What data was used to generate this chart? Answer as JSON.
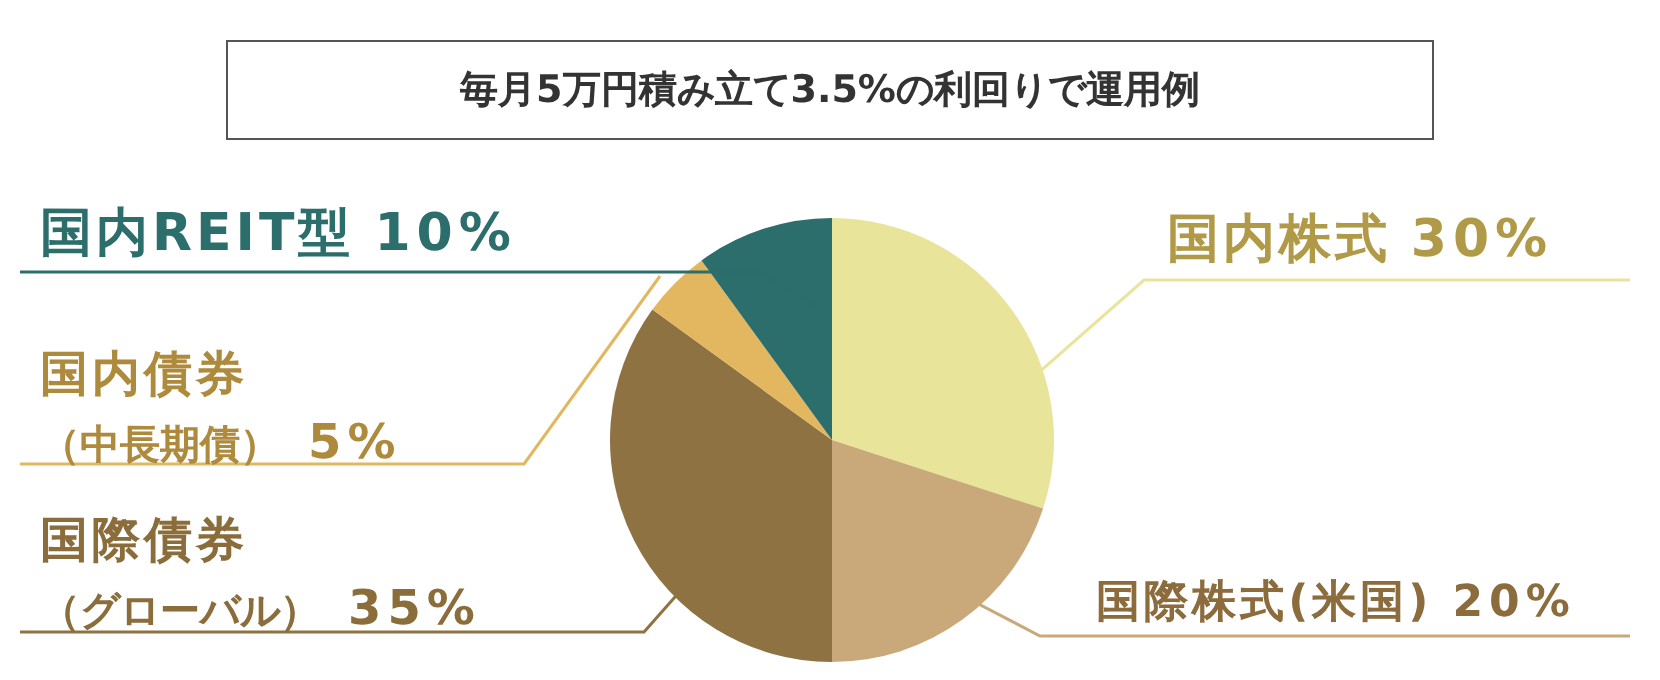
{
  "chart_data": {
    "type": "pie",
    "title": "毎月5万円積み立て3.5%の利回りで運用例",
    "categories": [
      "国内株式",
      "国際株式(米国)",
      "国際債券（グローバル）",
      "国内債券（中長期債）",
      "国内REIT型"
    ],
    "values": [
      30,
      20,
      35,
      5,
      10
    ],
    "value_labels": [
      "30%",
      "20%",
      "35%",
      "5%",
      "10%"
    ],
    "colors": [
      "#e8e59b",
      "#c9a97a",
      "#8f7242",
      "#e2b760",
      "#2b6e6b"
    ],
    "legend": false
  }
}
